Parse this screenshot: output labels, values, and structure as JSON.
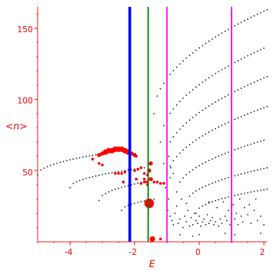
{
  "chart_data": {
    "type": "scatter",
    "xlabel": "E",
    "ylabel": "<n>",
    "xlim": [
      -5,
      2.1
    ],
    "ylim": [
      0,
      165
    ],
    "xticks": [
      -4,
      -2,
      0,
      2
    ],
    "yticks": [
      50,
      100,
      150
    ],
    "xtick_labels": [
      "-4",
      "-2",
      "0",
      "2"
    ],
    "ytick_labels": [
      "50",
      "100",
      "150"
    ],
    "colors": {
      "axis": "#ff0000",
      "dots": "#000000",
      "highlight": "#ff0000",
      "blue_line": "#0000ff",
      "green_line": "#008000",
      "magenta_line": "#ff00ff"
    },
    "vertical_lines": [
      {
        "x": -2.15,
        "color": "#0000ff",
        "width": 4
      },
      {
        "x": -1.58,
        "color": "#008000",
        "width": 2
      },
      {
        "x": -1.0,
        "color": "#ff00ff",
        "width": 2
      },
      {
        "x": 1.0,
        "color": "#ff00ff",
        "width": 2
      }
    ],
    "bands": [
      {
        "x_start": -5.0,
        "x_end": -2.7,
        "y_start": 47,
        "y_end": 63,
        "step": 0.1
      },
      {
        "x_start": -4.0,
        "x_end": -1.7,
        "y_start": 38,
        "y_end": 52,
        "step": 0.1
      },
      {
        "x_start": -3.1,
        "x_end": -1.5,
        "y_start": 29,
        "y_end": 43,
        "step": 0.1
      },
      {
        "x_start": -2.4,
        "x_end": -1.4,
        "y_start": 22,
        "y_end": 30,
        "step": 0.1
      },
      {
        "x_start": -1.4,
        "x_end": 2.1,
        "y_start": 90,
        "y_end": 163,
        "step": 0.1
      },
      {
        "x_start": -1.2,
        "x_end": 2.1,
        "y_start": 70,
        "y_end": 137,
        "step": 0.1
      },
      {
        "x_start": -1.1,
        "x_end": 2.1,
        "y_start": 55,
        "y_end": 116,
        "step": 0.1
      },
      {
        "x_start": -1.0,
        "x_end": 2.1,
        "y_start": 44,
        "y_end": 95,
        "step": 0.1
      },
      {
        "x_start": -0.7,
        "x_end": 2.1,
        "y_start": 35,
        "y_end": 72,
        "step": 0.1
      },
      {
        "x_start": -0.4,
        "x_end": 2.1,
        "y_start": 27,
        "y_end": 52,
        "step": 0.1
      },
      {
        "x_start": -0.1,
        "x_end": 2.1,
        "y_start": 20,
        "y_end": 37,
        "step": 0.1
      }
    ],
    "scatter_points": [
      [
        -1.05,
        38
      ],
      [
        -0.95,
        30
      ],
      [
        -0.98,
        22
      ],
      [
        -0.9,
        18
      ],
      [
        -0.85,
        15
      ],
      [
        -0.8,
        12
      ],
      [
        -0.75,
        20
      ],
      [
        -0.7,
        25
      ],
      [
        -0.65,
        13
      ],
      [
        -0.6,
        16
      ],
      [
        -0.5,
        10
      ],
      [
        -0.45,
        18
      ],
      [
        -0.4,
        14
      ],
      [
        -0.35,
        22
      ],
      [
        -0.3,
        11
      ],
      [
        -0.25,
        17
      ],
      [
        -0.2,
        12
      ],
      [
        -0.15,
        20
      ],
      [
        -0.1,
        15
      ],
      [
        -0.05,
        13
      ],
      [
        0.0,
        18
      ],
      [
        0.05,
        11
      ],
      [
        0.1,
        14
      ],
      [
        0.15,
        16
      ],
      [
        0.2,
        12
      ],
      [
        0.25,
        19
      ],
      [
        0.3,
        13
      ],
      [
        0.35,
        15
      ],
      [
        0.4,
        17
      ],
      [
        0.45,
        12
      ],
      [
        0.5,
        14
      ],
      [
        0.55,
        24
      ],
      [
        0.6,
        11
      ],
      [
        0.65,
        16
      ],
      [
        0.7,
        13
      ],
      [
        0.75,
        28
      ],
      [
        0.8,
        18
      ],
      [
        0.85,
        15
      ],
      [
        0.9,
        22
      ],
      [
        0.95,
        12
      ],
      [
        1.05,
        26
      ],
      [
        1.1,
        16
      ],
      [
        1.15,
        20
      ],
      [
        1.2,
        12
      ],
      [
        1.25,
        30
      ],
      [
        1.3,
        18
      ],
      [
        1.35,
        14
      ],
      [
        1.4,
        24
      ],
      [
        1.5,
        19
      ],
      [
        1.55,
        26
      ],
      [
        1.6,
        13
      ],
      [
        1.7,
        22
      ],
      [
        1.75,
        30
      ],
      [
        1.8,
        15
      ],
      [
        1.9,
        18
      ],
      [
        2.0,
        12
      ],
      [
        -0.55,
        30
      ],
      [
        -0.6,
        5
      ],
      [
        0.3,
        28
      ],
      [
        1.1,
        5
      ],
      [
        0.0,
        5
      ],
      [
        -0.2,
        4
      ],
      [
        0.8,
        6
      ],
      [
        1.9,
        6
      ],
      [
        -0.9,
        45
      ],
      [
        -0.88,
        52
      ],
      [
        -0.95,
        60
      ],
      [
        -1.0,
        66
      ],
      [
        -0.8,
        48
      ]
    ],
    "highlight_points": [
      [
        -3.1,
        61,
        3
      ],
      [
        -3.0,
        62,
        3
      ],
      [
        -2.9,
        63,
        4
      ],
      [
        -2.8,
        64,
        4
      ],
      [
        -2.7,
        64,
        4
      ],
      [
        -2.6,
        65,
        4
      ],
      [
        -2.5,
        65,
        4
      ],
      [
        -2.4,
        65,
        4
      ],
      [
        -2.3,
        64,
        4
      ],
      [
        -2.2,
        63,
        4
      ],
      [
        -2.1,
        62,
        3
      ],
      [
        -2.0,
        61,
        3
      ],
      [
        -1.95,
        60,
        2
      ],
      [
        -3.3,
        58,
        2
      ],
      [
        -2.0,
        50,
        2
      ],
      [
        -1.9,
        51,
        2
      ],
      [
        -1.8,
        52,
        2
      ],
      [
        -2.6,
        48,
        2
      ],
      [
        -2.5,
        48,
        2
      ],
      [
        -2.4,
        48,
        2
      ],
      [
        -2.3,
        49,
        2
      ],
      [
        -1.7,
        48,
        2
      ],
      [
        -1.6,
        47,
        2
      ],
      [
        -1.55,
        50,
        3
      ],
      [
        -1.5,
        55,
        3
      ],
      [
        -1.5,
        44,
        3
      ],
      [
        -1.62,
        42,
        2
      ],
      [
        -1.7,
        42,
        2
      ],
      [
        -1.8,
        41,
        2
      ],
      [
        -1.4,
        42,
        2
      ],
      [
        -1.3,
        42,
        2
      ],
      [
        -1.2,
        41,
        2
      ],
      [
        -1.1,
        41,
        2
      ],
      [
        -1.95,
        44,
        2
      ],
      [
        -3.1,
        55,
        2
      ],
      [
        -3.0,
        54,
        2
      ],
      [
        -2.35,
        42,
        2
      ],
      [
        -1.55,
        27,
        7
      ],
      [
        -1.45,
        2,
        4
      ],
      [
        -1.2,
        2,
        2
      ],
      [
        -1.7,
        44,
        2
      ],
      [
        -1.6,
        40,
        2
      ]
    ]
  }
}
